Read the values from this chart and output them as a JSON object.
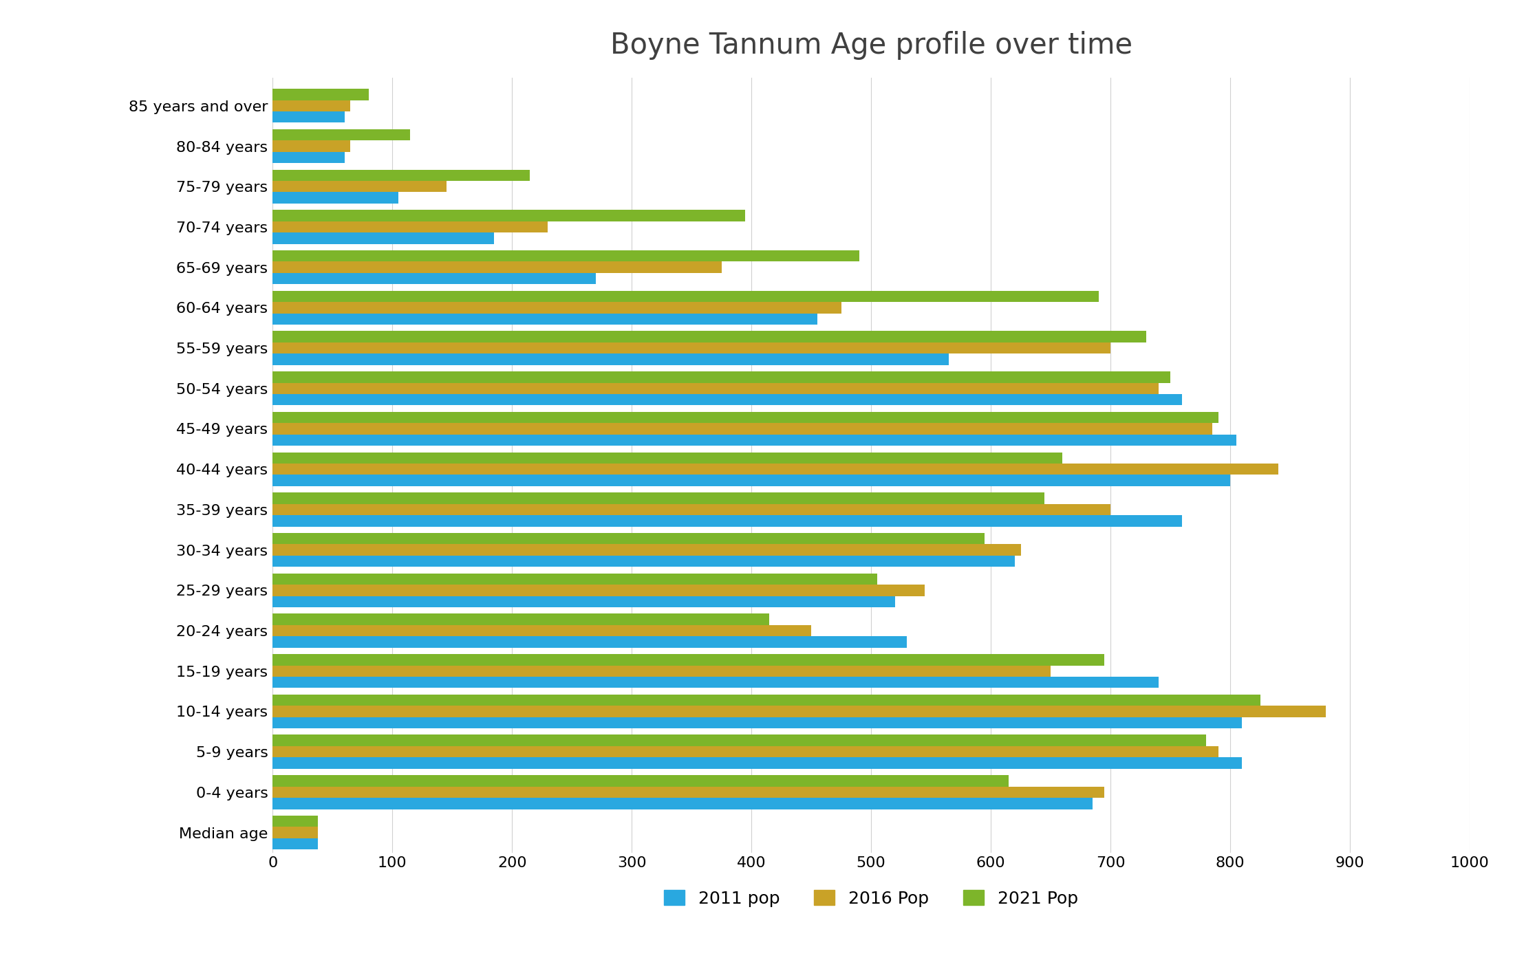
{
  "title": "Boyne Tannum Age profile over time",
  "categories": [
    "85 years and over",
    "80-84 years",
    "75-79 years",
    "70-74 years",
    "65-69 years",
    "60-64 years",
    "55-59 years",
    "50-54 years",
    "45-49 years",
    "40-44 years",
    "35-39 years",
    "30-34 years",
    "25-29 years",
    "20-24 years",
    "15-19 years",
    "10-14 years",
    "5-9 years",
    "0-4 years",
    "Median age"
  ],
  "series": {
    "2011 pop": [
      60,
      60,
      105,
      185,
      270,
      455,
      565,
      760,
      805,
      800,
      760,
      620,
      520,
      530,
      740,
      810,
      810,
      685,
      38
    ],
    "2016 Pop": [
      65,
      65,
      145,
      230,
      375,
      475,
      700,
      740,
      785,
      840,
      700,
      625,
      545,
      450,
      650,
      880,
      790,
      695,
      38
    ],
    "2021 Pop": [
      80,
      115,
      215,
      395,
      490,
      690,
      730,
      750,
      790,
      660,
      645,
      595,
      505,
      415,
      695,
      825,
      780,
      615,
      38
    ]
  },
  "colors": {
    "2011 pop": "#29a8e0",
    "2016 Pop": "#c9a227",
    "2021 Pop": "#7db52a"
  },
  "xlim": [
    0,
    1000
  ],
  "xticks": [
    0,
    100,
    200,
    300,
    400,
    500,
    600,
    700,
    800,
    900,
    1000
  ],
  "figsize": [
    22.02,
    14.09
  ],
  "dpi": 100,
  "title_fontsize": 30,
  "legend_fontsize": 18,
  "axis_fontsize": 16,
  "ylabel_fontsize": 16,
  "background_color": "#ffffff",
  "bar_height": 0.28,
  "grid_color": "#d0d0d0"
}
